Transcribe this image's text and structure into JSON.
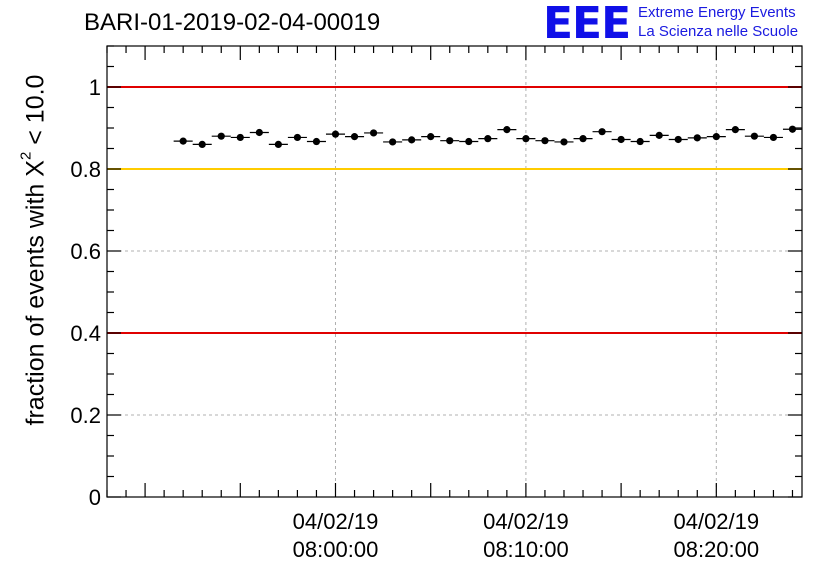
{
  "header": {
    "title": "BARI-01-2019-02-04-00019",
    "logo_mark": "EEE",
    "logo_line1": "Extreme Energy Events",
    "logo_line2": "La Scienza nelle Scuole"
  },
  "chart_data": {
    "type": "scatter",
    "title": "BARI-01-2019-02-04-00019",
    "ylabel_text": "fraction of events with ",
    "ylabel_chi": "X",
    "ylabel_sup": "2",
    "ylabel_tail": " < 10.0",
    "xlabel": "",
    "ylim": [
      0,
      1.1
    ],
    "grid": true,
    "y_ticks": [
      "0",
      "0.2",
      "0.4",
      "0.6",
      "0.8",
      "1"
    ],
    "x_time_labels": [
      {
        "date": "04/02/19",
        "time": "08:00:00"
      },
      {
        "date": "04/02/19",
        "time": "08:10:00"
      },
      {
        "date": "04/02/19",
        "time": "08:20:00"
      }
    ],
    "reference_lines": [
      {
        "y": 1.0,
        "color": "#e00000"
      },
      {
        "y": 0.8,
        "color": "#ffcc00"
      },
      {
        "y": 0.4,
        "color": "#e00000"
      }
    ],
    "points": [
      {
        "x": "07:52:00",
        "y": 0.868
      },
      {
        "x": "07:53:00",
        "y": 0.86
      },
      {
        "x": "07:54:00",
        "y": 0.88
      },
      {
        "x": "07:55:00",
        "y": 0.877
      },
      {
        "x": "07:56:00",
        "y": 0.889
      },
      {
        "x": "07:57:00",
        "y": 0.86
      },
      {
        "x": "07:58:00",
        "y": 0.877
      },
      {
        "x": "07:59:00",
        "y": 0.867
      },
      {
        "x": "08:00:00",
        "y": 0.885
      },
      {
        "x": "08:01:00",
        "y": 0.879
      },
      {
        "x": "08:02:00",
        "y": 0.888
      },
      {
        "x": "08:03:00",
        "y": 0.866
      },
      {
        "x": "08:04:00",
        "y": 0.871
      },
      {
        "x": "08:05:00",
        "y": 0.879
      },
      {
        "x": "08:06:00",
        "y": 0.869
      },
      {
        "x": "08:07:00",
        "y": 0.867
      },
      {
        "x": "08:08:00",
        "y": 0.874
      },
      {
        "x": "08:09:00",
        "y": 0.896
      },
      {
        "x": "08:10:00",
        "y": 0.874
      },
      {
        "x": "08:11:00",
        "y": 0.869
      },
      {
        "x": "08:12:00",
        "y": 0.866
      },
      {
        "x": "08:13:00",
        "y": 0.874
      },
      {
        "x": "08:14:00",
        "y": 0.891
      },
      {
        "x": "08:15:00",
        "y": 0.872
      },
      {
        "x": "08:16:00",
        "y": 0.867
      },
      {
        "x": "08:17:00",
        "y": 0.882
      },
      {
        "x": "08:18:00",
        "y": 0.872
      },
      {
        "x": "08:19:00",
        "y": 0.876
      },
      {
        "x": "08:20:00",
        "y": 0.879
      },
      {
        "x": "08:21:00",
        "y": 0.896
      },
      {
        "x": "08:22:00",
        "y": 0.88
      },
      {
        "x": "08:23:00",
        "y": 0.877
      },
      {
        "x": "08:24:00",
        "y": 0.897
      }
    ],
    "colors": {
      "marker": "#000000",
      "grid": "#b0b0b0",
      "axis": "#000000"
    }
  }
}
